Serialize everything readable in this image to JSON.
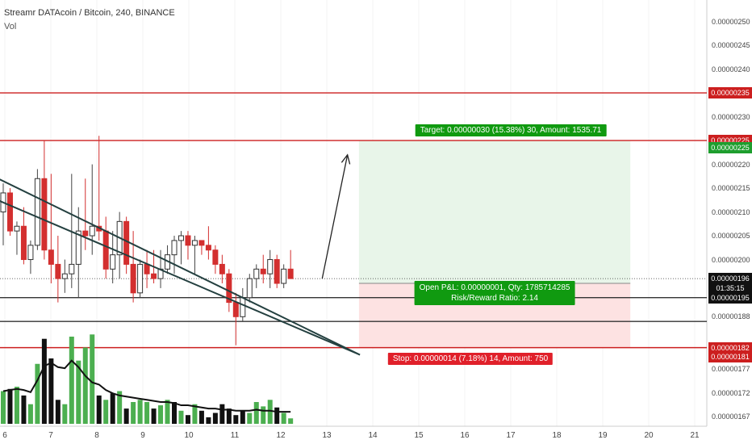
{
  "header": {
    "title": "Streamr DATAcoin / Bitcoin, 240, BINANCE",
    "indicator": "Vol"
  },
  "chart_data": {
    "type": "candlestick",
    "ylim": [
      1.655e-06,
      2.535e-06
    ],
    "y_ticks": [
      "0.00000250",
      "0.00000245",
      "0.00000240",
      "0.00000230",
      "0.00000220",
      "0.00000215",
      "0.00000210",
      "0.00000205",
      "0.00000200",
      "0.00000188",
      "0.00000177",
      "0.00000172",
      "0.00000167"
    ],
    "x_ticks": [
      "6",
      "7",
      "8",
      "9",
      "10",
      "11",
      "12",
      "13",
      "14",
      "15",
      "16",
      "17",
      "18",
      "19",
      "20",
      "21"
    ],
    "price_tags": [
      {
        "label": "0.00000235",
        "value": 2.35e-06,
        "color": "#cc1f1f"
      },
      {
        "label": "0.00000225",
        "value": 2.25e-06,
        "color": "#cc1f1f"
      },
      {
        "label": "0.00000225",
        "value": 2.235e-06,
        "color": "#1e9e2e"
      },
      {
        "label": "0.00000196",
        "value": 1.96e-06,
        "color": "#111111"
      },
      {
        "label": "01:35:15",
        "value": 1.94e-06,
        "color": "#111111"
      },
      {
        "label": "0.00000195",
        "value": 1.92e-06,
        "color": "#111111"
      },
      {
        "label": "0.00000182",
        "value": 1.815e-06,
        "color": "#cc1f1f"
      },
      {
        "label": "0.00000181",
        "value": 1.795e-06,
        "color": "#cc1f1f"
      }
    ],
    "horizontal_lines": [
      {
        "value": 2.35e-06,
        "color": "#cc1f1f"
      },
      {
        "value": 2.25e-06,
        "color": "#cc1f1f"
      },
      {
        "value": 1.815e-06,
        "color": "#cc1f1f"
      },
      {
        "value": 1.92e-06,
        "color": "#333333"
      },
      {
        "value": 1.87e-06,
        "color": "#333333"
      }
    ],
    "candles": [
      {
        "o": 2.1e-06,
        "h": 2.16e-06,
        "l": 2.03e-06,
        "c": 2.14e-06
      },
      {
        "o": 2.14e-06,
        "h": 2.15e-06,
        "l": 2.05e-06,
        "c": 2.06e-06
      },
      {
        "o": 2.06e-06,
        "h": 2.08e-06,
        "l": 2.01e-06,
        "c": 2.07e-06
      },
      {
        "o": 2.07e-06,
        "h": 2.11e-06,
        "l": 1.99e-06,
        "c": 2e-06
      },
      {
        "o": 2e-06,
        "h": 2.04e-06,
        "l": 1.97e-06,
        "c": 2.03e-06
      },
      {
        "o": 2.03e-06,
        "h": 2.19e-06,
        "l": 2.02e-06,
        "c": 2.17e-06
      },
      {
        "o": 2.17e-06,
        "h": 2.25e-06,
        "l": 2e-06,
        "c": 2.02e-06
      },
      {
        "o": 2.02e-06,
        "h": 2.18e-06,
        "l": 1.95e-06,
        "c": 1.99e-06
      },
      {
        "o": 1.99e-06,
        "h": 2.05e-06,
        "l": 1.91e-06,
        "c": 1.96e-06
      },
      {
        "o": 1.96e-06,
        "h": 2e-06,
        "l": 1.93e-06,
        "c": 1.97e-06
      },
      {
        "o": 1.97e-06,
        "h": 2.18e-06,
        "l": 1.94e-06,
        "c": 1.99e-06
      },
      {
        "o": 1.99e-06,
        "h": 2.11e-06,
        "l": 1.92e-06,
        "c": 2.06e-06
      },
      {
        "o": 2.06e-06,
        "h": 2.17e-06,
        "l": 2.02e-06,
        "c": 2.05e-06
      },
      {
        "o": 2.05e-06,
        "h": 2.2e-06,
        "l": 2.01e-06,
        "c": 2.07e-06
      },
      {
        "o": 2.07e-06,
        "h": 2.26e-06,
        "l": 2.04e-06,
        "c": 2.06e-06
      },
      {
        "o": 2.06e-06,
        "h": 2.09e-06,
        "l": 1.96e-06,
        "c": 1.98e-06
      },
      {
        "o": 1.98e-06,
        "h": 2.06e-06,
        "l": 1.95e-06,
        "c": 2.01e-06
      },
      {
        "o": 2.01e-06,
        "h": 2.1e-06,
        "l": 1.96e-06,
        "c": 2.08e-06
      },
      {
        "o": 2.08e-06,
        "h": 2.09e-06,
        "l": 1.97e-06,
        "c": 1.99e-06
      },
      {
        "o": 1.99e-06,
        "h": 2.06e-06,
        "l": 1.91e-06,
        "c": 1.93e-06
      },
      {
        "o": 1.93e-06,
        "h": 2e-06,
        "l": 1.92e-06,
        "c": 1.99e-06
      },
      {
        "o": 1.99e-06,
        "h": 2.02e-06,
        "l": 1.94e-06,
        "c": 1.97e-06
      },
      {
        "o": 1.97e-06,
        "h": 2.02e-06,
        "l": 1.95e-06,
        "c": 1.96e-06
      },
      {
        "o": 1.96e-06,
        "h": 2.02e-06,
        "l": 1.94e-06,
        "c": 1.98e-06
      },
      {
        "o": 1.98e-06,
        "h": 2.03e-06,
        "l": 1.97e-06,
        "c": 2.01e-06
      },
      {
        "o": 2.01e-06,
        "h": 2.05e-06,
        "l": 1.97e-06,
        "c": 2.04e-06
      },
      {
        "o": 2.04e-06,
        "h": 2.06e-06,
        "l": 1.99e-06,
        "c": 2.05e-06
      },
      {
        "o": 2.05e-06,
        "h": 2.06e-06,
        "l": 2e-06,
        "c": 2.03e-06
      },
      {
        "o": 2.03e-06,
        "h": 2.05e-06,
        "l": 1.97e-06,
        "c": 2.04e-06
      },
      {
        "o": 2.04e-06,
        "h": 2.04e-06,
        "l": 2.01e-06,
        "c": 2.03e-06
      },
      {
        "o": 2.03e-06,
        "h": 2.07e-06,
        "l": 2e-06,
        "c": 2.02e-06
      },
      {
        "o": 2.02e-06,
        "h": 2.03e-06,
        "l": 1.97e-06,
        "c": 1.99e-06
      },
      {
        "o": 1.99e-06,
        "h": 2.01e-06,
        "l": 1.95e-06,
        "c": 1.97e-06
      },
      {
        "o": 1.97e-06,
        "h": 1.98e-06,
        "l": 1.89e-06,
        "c": 1.91e-06
      },
      {
        "o": 1.91e-06,
        "h": 1.93e-06,
        "l": 1.82e-06,
        "c": 1.88e-06
      },
      {
        "o": 1.88e-06,
        "h": 1.94e-06,
        "l": 1.87e-06,
        "c": 1.92e-06
      },
      {
        "o": 1.92e-06,
        "h": 1.97e-06,
        "l": 1.91e-06,
        "c": 1.96e-06
      },
      {
        "o": 1.96e-06,
        "h": 1.99e-06,
        "l": 1.94e-06,
        "c": 1.98e-06
      },
      {
        "o": 1.98e-06,
        "h": 2.01e-06,
        "l": 1.95e-06,
        "c": 1.97e-06
      },
      {
        "o": 1.97e-06,
        "h": 2.02e-06,
        "l": 1.94e-06,
        "c": 2e-06
      },
      {
        "o": 2e-06,
        "h": 2.01e-06,
        "l": 1.94e-06,
        "c": 1.95e-06
      },
      {
        "o": 1.95e-06,
        "h": 1.99e-06,
        "l": 1.94e-06,
        "c": 1.98e-06
      },
      {
        "o": 1.98e-06,
        "h": 2.02e-06,
        "l": 1.96e-06,
        "c": 1.96e-06
      }
    ],
    "volume": [
      {
        "v": 0.3,
        "up": true
      },
      {
        "v": 0.32,
        "up": false
      },
      {
        "v": 0.34,
        "up": true
      },
      {
        "v": 0.26,
        "up": false
      },
      {
        "v": 0.18,
        "up": true
      },
      {
        "v": 0.55,
        "up": true
      },
      {
        "v": 0.78,
        "up": false
      },
      {
        "v": 0.6,
        "up": false
      },
      {
        "v": 0.22,
        "up": false
      },
      {
        "v": 0.18,
        "up": true
      },
      {
        "v": 0.8,
        "up": true
      },
      {
        "v": 0.58,
        "up": true
      },
      {
        "v": 0.7,
        "up": true
      },
      {
        "v": 0.82,
        "up": true
      },
      {
        "v": 0.26,
        "up": false
      },
      {
        "v": 0.22,
        "up": true
      },
      {
        "v": 0.28,
        "up": false
      },
      {
        "v": 0.3,
        "up": true
      },
      {
        "v": 0.14,
        "up": false
      },
      {
        "v": 0.2,
        "up": true
      },
      {
        "v": 0.22,
        "up": true
      },
      {
        "v": 0.2,
        "up": true
      },
      {
        "v": 0.14,
        "up": false
      },
      {
        "v": 0.17,
        "up": true
      },
      {
        "v": 0.22,
        "up": true
      },
      {
        "v": 0.2,
        "up": false
      },
      {
        "v": 0.12,
        "up": true
      },
      {
        "v": 0.08,
        "up": false
      },
      {
        "v": 0.18,
        "up": true
      },
      {
        "v": 0.12,
        "up": false
      },
      {
        "v": 0.06,
        "up": false
      },
      {
        "v": 0.1,
        "up": false
      },
      {
        "v": 0.18,
        "up": false
      },
      {
        "v": 0.14,
        "up": false
      },
      {
        "v": 0.08,
        "up": false
      },
      {
        "v": 0.12,
        "up": false
      },
      {
        "v": 0.1,
        "up": true
      },
      {
        "v": 0.2,
        "up": true
      },
      {
        "v": 0.16,
        "up": true
      },
      {
        "v": 0.22,
        "up": true
      },
      {
        "v": 0.15,
        "up": false
      },
      {
        "v": 0.1,
        "up": true
      },
      {
        "v": 0.05,
        "up": true
      }
    ],
    "volume_ma": [
      0.3,
      0.31,
      0.32,
      0.31,
      0.29,
      0.4,
      0.53,
      0.56,
      0.52,
      0.51,
      0.58,
      0.52,
      0.44,
      0.38,
      0.36,
      0.31,
      0.28,
      0.26,
      0.25,
      0.24,
      0.23,
      0.22,
      0.21,
      0.2,
      0.2,
      0.19,
      0.17,
      0.17,
      0.16,
      0.15,
      0.14,
      0.14,
      0.13,
      0.13,
      0.12,
      0.12,
      0.12,
      0.13,
      0.12,
      0.12,
      0.11,
      0.11,
      0.11
    ],
    "trendlines": [
      {
        "from": {
          "t": -0.1,
          "p": 2.45e-06
        },
        "to": {
          "t": 13.72,
          "p": 1.8e-06
        }
      },
      {
        "from": {
          "t": -0.1,
          "p": 2.37e-06
        },
        "to": {
          "t": 13.72,
          "p": 1.8e-06
        }
      }
    ],
    "projection_arrow": {
      "from": {
        "t": 12.9,
        "p": 1.96e-06
      },
      "to": {
        "t": 13.45,
        "p": 2.22e-06
      }
    },
    "position": {
      "start_t": 13.7,
      "end_t": 19.6,
      "entry": 1.95e-06,
      "target": 2.25e-06,
      "stop": 1.815e-06
    },
    "annotations": {
      "target": "Target: 0.00000030 (15.38%) 30, Amount: 1535.71",
      "open_pnl": "Open P&L: 0.00000001, Qty: 1785714285",
      "rr": "Risk/Reward Ratio: 2.14",
      "stop": "Stop: 0.00000014 (7.18%) 14, Amount: 750"
    },
    "colors": {
      "up": "#4caf50",
      "down": "#d32f2f",
      "volume_up": "#4caf50",
      "volume_down": "#111111",
      "target_zone": "#e8f5e9",
      "stop_zone": "#fde2e2",
      "label_green": "#109a10",
      "label_red": "#e0202a",
      "trendline": "#244040",
      "grid": "#f3f3f3"
    }
  }
}
